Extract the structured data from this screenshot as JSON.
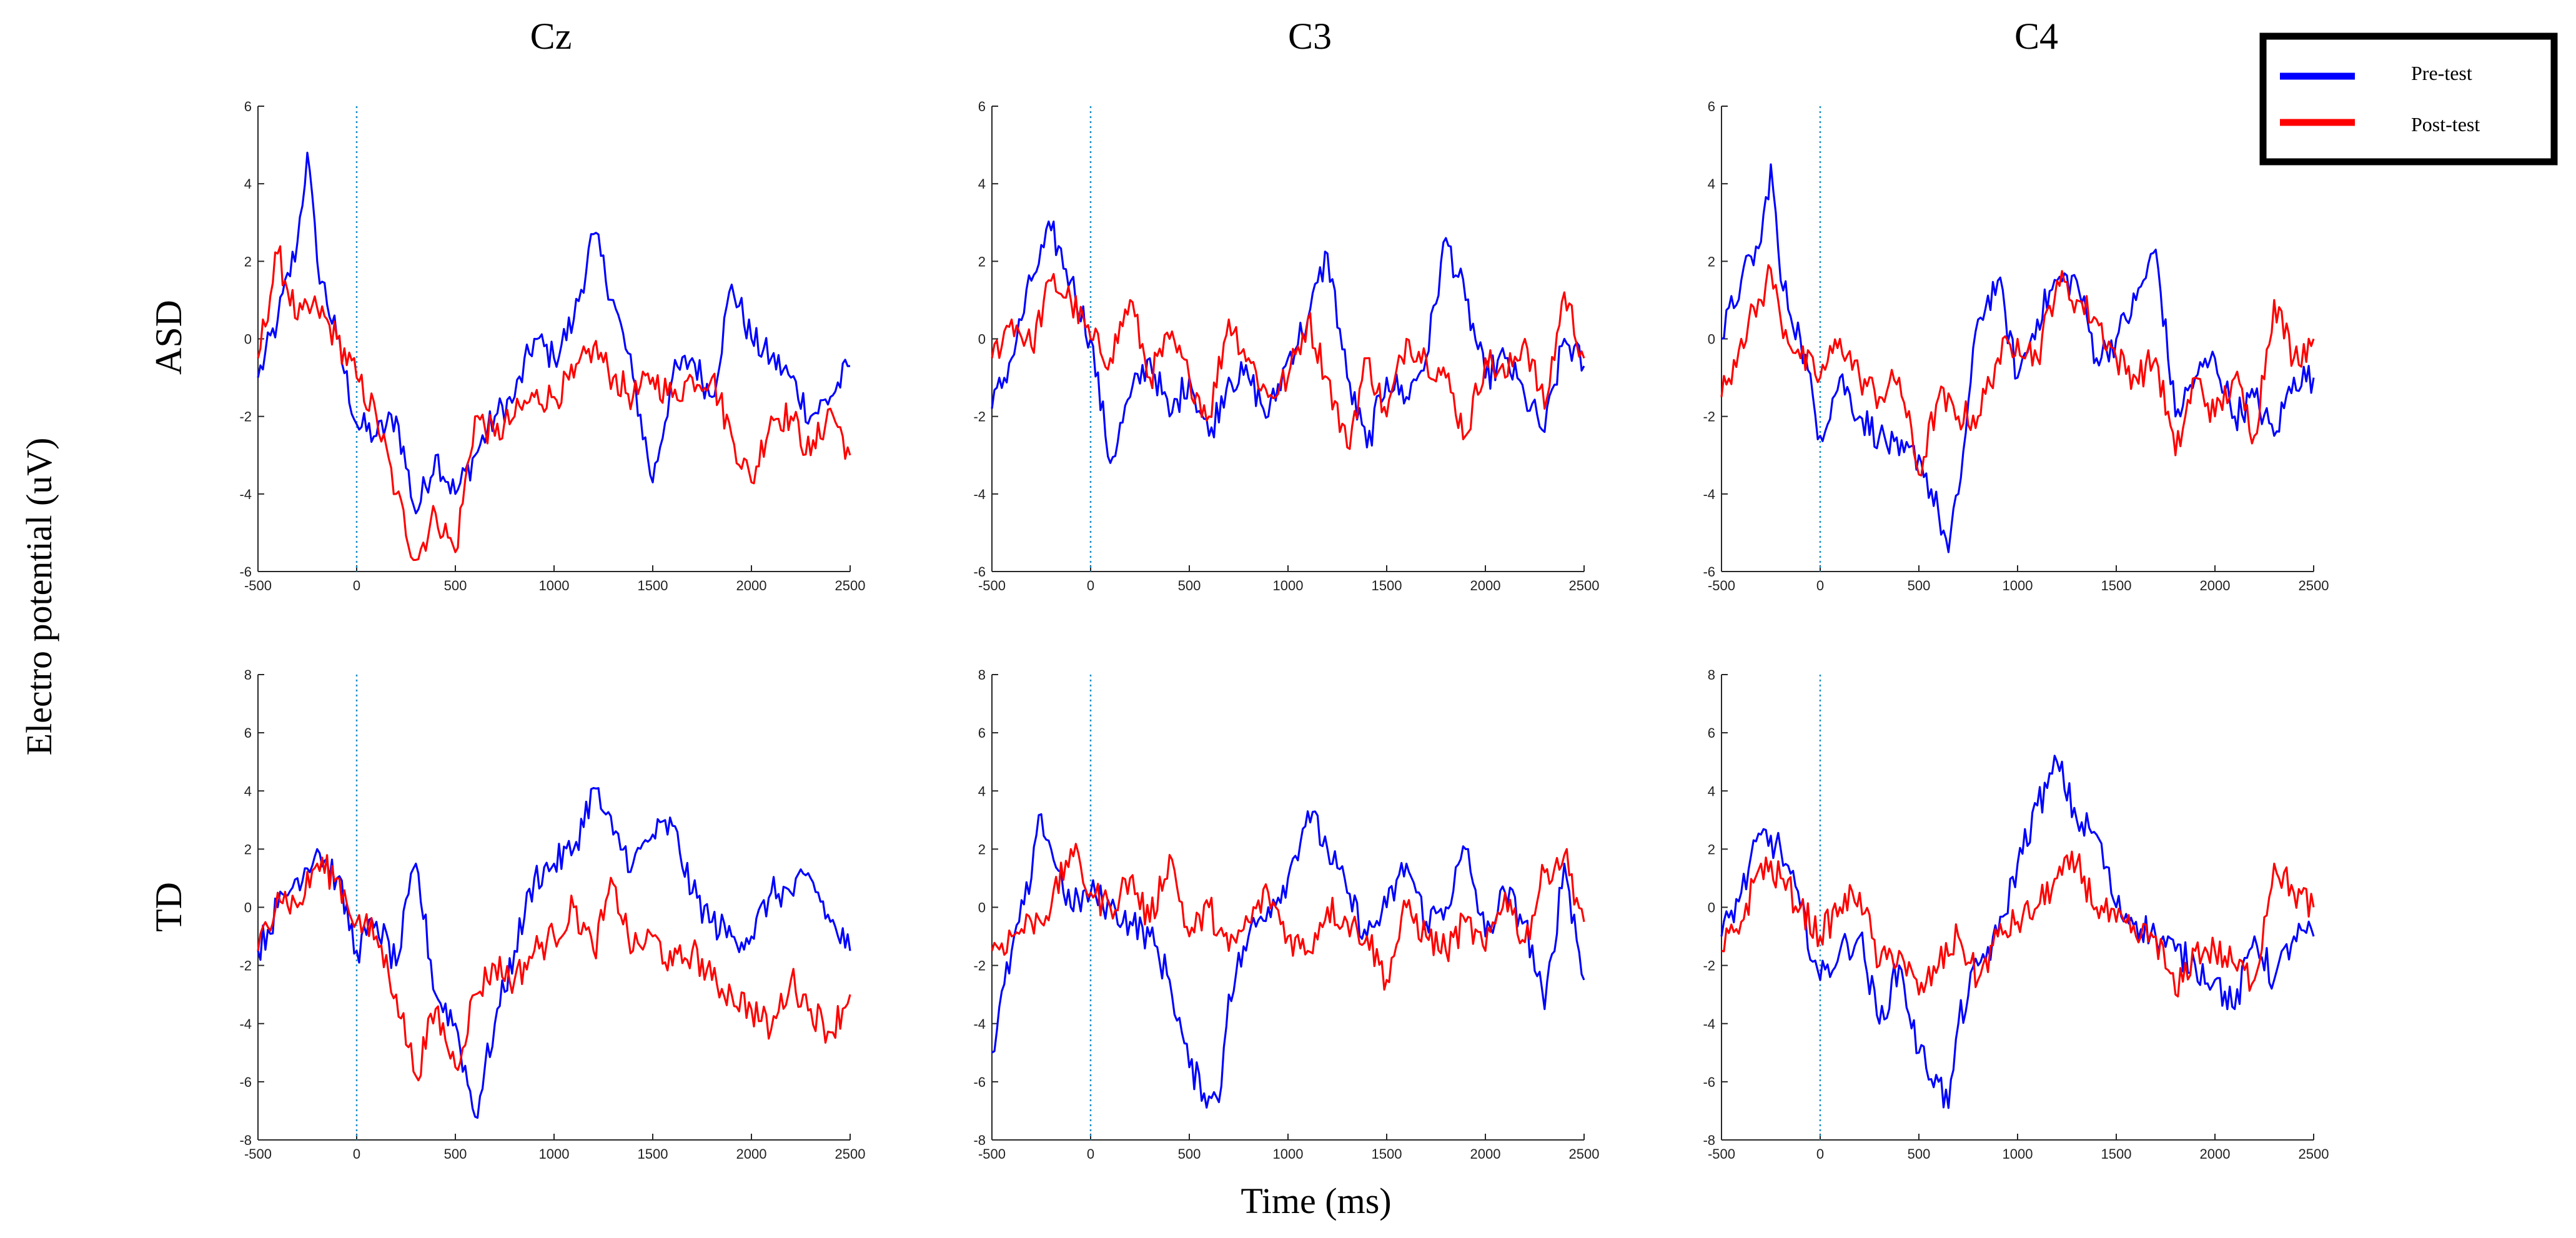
{
  "chart_data": {
    "type": "line",
    "ylabel": "Electro potential (uV)",
    "xlabel": "Time (ms)",
    "columns": [
      "Cz",
      "C3",
      "C4"
    ],
    "rows": [
      "ASD",
      "TD"
    ],
    "legend": {
      "position": "top-right",
      "entries": [
        {
          "name": "Pre-test",
          "color": "#0000ff"
        },
        {
          "name": "Post-test",
          "color": "#ff0000"
        }
      ]
    },
    "xlim": [
      -500,
      2500
    ],
    "xticks": [
      -500,
      0,
      500,
      1000,
      1500,
      2000,
      2500
    ],
    "stimulus_onset_ms": 0,
    "row_axes": [
      {
        "row": "ASD",
        "ylim": [
          -6,
          6
        ],
        "yticks": [
          -6,
          -4,
          -2,
          0,
          2,
          4,
          6
        ]
      },
      {
        "row": "TD",
        "ylim": [
          -8,
          8
        ],
        "yticks": [
          -8,
          -6,
          -4,
          -2,
          0,
          2,
          4,
          6,
          8
        ]
      }
    ],
    "panels": [
      {
        "row": "ASD",
        "column": "Cz",
        "series": [
          {
            "name": "Pre-test",
            "x": [
              -500,
              -400,
              -300,
              -250,
              -200,
              -100,
              0,
              100,
              200,
              300,
              400,
              500,
              600,
              700,
              800,
              900,
              1000,
              1100,
              1200,
              1300,
              1400,
              1500,
              1600,
              1700,
              1800,
              1900,
              2000,
              2100,
              2200,
              2300,
              2400,
              2500
            ],
            "y": [
              -1,
              0.5,
              2.5,
              4.8,
              2,
              0,
              -2.2,
              -2.5,
              -2,
              -4.5,
              -3,
              -4,
              -3,
              -2,
              -1.5,
              0,
              -0.5,
              0.5,
              2.7,
              1,
              -1,
              -3.7,
              -1,
              -0.5,
              -1.5,
              1.4,
              0,
              -0.5,
              -1,
              -2,
              -1.5,
              -0.7
            ]
          },
          {
            "name": "Post-test",
            "x": [
              -500,
              -400,
              -300,
              -200,
              -100,
              0,
              100,
              200,
              300,
              400,
              500,
              600,
              700,
              800,
              900,
              1000,
              1100,
              1200,
              1300,
              1400,
              1500,
              1600,
              1700,
              1800,
              1900,
              2000,
              2100,
              2200,
              2300,
              2400,
              2500
            ],
            "y": [
              -0.5,
              2.2,
              0.5,
              0.8,
              0,
              -1,
              -2,
              -4,
              -5.7,
              -4.5,
              -5.5,
              -2,
              -2.5,
              -2,
              -1.5,
              -1.5,
              -1,
              -0.2,
              -1,
              -1.5,
              -1,
              -1.5,
              -1,
              -1,
              -2.5,
              -3.7,
              -2,
              -2,
              -3,
              -1.8,
              -3
            ]
          }
        ]
      },
      {
        "row": "ASD",
        "column": "C3",
        "series": [
          {
            "name": "Pre-test",
            "x": [
              -500,
              -400,
              -300,
              -200,
              -100,
              0,
              100,
              200,
              300,
              400,
              500,
              600,
              700,
              800,
              900,
              1000,
              1100,
              1200,
              1300,
              1400,
              1500,
              1600,
              1700,
              1800,
              1900,
              2000,
              2100,
              2200,
              2300,
              2400,
              2500
            ],
            "y": [
              -1.8,
              -0.5,
              1.5,
              2.8,
              1.5,
              0,
              -3.2,
              -1.5,
              -0.5,
              -2,
              -1,
              -2.5,
              -1,
              -1,
              -2,
              -0.5,
              0.5,
              2.2,
              -1,
              -2.8,
              -1,
              -1.5,
              -0.5,
              2.6,
              1,
              -1,
              -0.5,
              -1.5,
              -2.4,
              0,
              -0.7
            ]
          },
          {
            "name": "Post-test",
            "x": [
              -500,
              -400,
              -300,
              -200,
              -100,
              0,
              100,
              200,
              300,
              400,
              500,
              600,
              700,
              800,
              900,
              1000,
              1100,
              1200,
              1300,
              1400,
              1500,
              1600,
              1700,
              1800,
              1900,
              2000,
              2100,
              2200,
              2300,
              2400,
              2500
            ],
            "y": [
              -0.5,
              0.5,
              -0.2,
              1.5,
              1,
              0,
              -0.5,
              1,
              -1,
              0,
              -1,
              -2,
              0.5,
              -0.5,
              -1.5,
              -1,
              0.5,
              -1,
              -2.8,
              -0.5,
              -2,
              0,
              -0.5,
              -1,
              -2.5,
              -0.5,
              -1,
              0,
              -1.8,
              1.2,
              -0.5
            ]
          }
        ]
      },
      {
        "row": "ASD",
        "column": "C4",
        "series": [
          {
            "name": "Pre-test",
            "x": [
              -500,
              -400,
              -300,
              -250,
              -200,
              -100,
              0,
              100,
              200,
              300,
              400,
              500,
              600,
              650,
              700,
              800,
              900,
              1000,
              1100,
              1200,
              1300,
              1400,
              1500,
              1600,
              1700,
              1800,
              1900,
              2000,
              2100,
              2200,
              2300,
              2400,
              2500
            ],
            "y": [
              0,
              1.5,
              2.5,
              4.5,
              1.5,
              0,
              -2.5,
              -1,
              -2,
              -2.5,
              -3,
              -3,
              -4.5,
              -5.5,
              -4,
              0.5,
              1.5,
              -1,
              0.5,
              1.5,
              1.5,
              -0.5,
              0,
              1,
              2.3,
              -2,
              -1,
              -0.5,
              -2,
              -1.5,
              -2.5,
              -1,
              -1
            ]
          },
          {
            "name": "Post-test",
            "x": [
              -500,
              -400,
              -300,
              -250,
              -200,
              -100,
              0,
              100,
              200,
              300,
              400,
              500,
              600,
              700,
              800,
              900,
              1000,
              1100,
              1200,
              1300,
              1400,
              1500,
              1600,
              1700,
              1800,
              1900,
              2000,
              2100,
              2200,
              2300,
              2400,
              2500
            ],
            "y": [
              -1.5,
              0,
              1,
              1.8,
              0.5,
              -0.5,
              -1,
              0,
              -1,
              -1.5,
              -1,
              -3.5,
              -1.5,
              -2,
              -2,
              -0.5,
              0,
              -0.5,
              1.5,
              1,
              0.5,
              -0.5,
              -1,
              -0.5,
              -3,
              -1,
              -2,
              -1,
              -2.5,
              1,
              -0.5,
              0
            ]
          }
        ]
      },
      {
        "row": "TD",
        "column": "Cz",
        "series": [
          {
            "name": "Pre-test",
            "x": [
              -500,
              -400,
              -300,
              -200,
              -100,
              0,
              100,
              200,
              300,
              400,
              500,
              600,
              700,
              800,
              900,
              1000,
              1100,
              1200,
              1300,
              1400,
              1500,
              1600,
              1700,
              1800,
              1900,
              2000,
              2100,
              2200,
              2300,
              2400,
              2500
            ],
            "y": [
              -1.5,
              0,
              1,
              2,
              1,
              -1.5,
              -0.5,
              -2,
              1.5,
              -3,
              -4,
              -7.2,
              -4,
              -1.5,
              1,
              1.5,
              2,
              4.1,
              2.5,
              1.5,
              2.5,
              2.8,
              0.5,
              -0.5,
              -1,
              -1,
              0.5,
              0.5,
              1,
              -0.5,
              -1.5
            ]
          },
          {
            "name": "Post-test",
            "x": [
              -500,
              -400,
              -300,
              -200,
              -100,
              0,
              100,
              200,
              300,
              400,
              500,
              600,
              700,
              800,
              900,
              1000,
              1100,
              1200,
              1300,
              1400,
              1500,
              1600,
              1700,
              1800,
              1900,
              2000,
              2100,
              2200,
              2300,
              2400,
              2500
            ],
            "y": [
              -1.5,
              0.5,
              0,
              1.5,
              1,
              -0.5,
              -1,
              -3,
              -5.8,
              -3.5,
              -5.5,
              -3,
              -2,
              -2.5,
              -1.5,
              -1,
              0,
              -1.5,
              0.8,
              -1.5,
              -1,
              -2,
              -1.5,
              -2.5,
              -3,
              -3.5,
              -4.2,
              -2.5,
              -3.5,
              -4.3,
              -3
            ]
          }
        ]
      },
      {
        "row": "TD",
        "column": "C3",
        "series": [
          {
            "name": "Pre-test",
            "x": [
              -500,
              -400,
              -300,
              -250,
              -200,
              -100,
              0,
              100,
              200,
              300,
              400,
              500,
              600,
              650,
              700,
              800,
              900,
              1000,
              1100,
              1200,
              1300,
              1400,
              1500,
              1600,
              1700,
              1800,
              1900,
              2000,
              2100,
              2200,
              2300,
              2400,
              2500
            ],
            "y": [
              -5,
              -1.5,
              1,
              3.2,
              2,
              0,
              0.5,
              0,
              -0.5,
              -1,
              -2.5,
              -5.5,
              -6.5,
              -6.7,
              -3,
              -1,
              0,
              1,
              3.3,
              2,
              0.5,
              -1,
              0,
              1.5,
              -0.5,
              0,
              2,
              -1,
              0.5,
              -0.5,
              -3.5,
              1.5,
              -2.5
            ]
          },
          {
            "name": "Post-test",
            "x": [
              -500,
              -400,
              -300,
              -200,
              -100,
              0,
              100,
              200,
              300,
              400,
              500,
              600,
              700,
              800,
              900,
              1000,
              1100,
              1200,
              1300,
              1400,
              1500,
              1600,
              1700,
              1800,
              1900,
              2000,
              2100,
              2200,
              2300,
              2400,
              2500
            ],
            "y": [
              -1.5,
              -1,
              -0.5,
              0,
              2,
              0.5,
              0,
              1,
              -0.5,
              1.8,
              -1,
              0,
              -1.5,
              -0.5,
              0.5,
              -1,
              -1.5,
              0,
              -0.5,
              -1,
              -2.5,
              0,
              -1,
              -1.5,
              -0.5,
              -1.5,
              0.5,
              -1.2,
              1.2,
              1.8,
              -0.5
            ]
          }
        ]
      },
      {
        "row": "TD",
        "column": "C4",
        "series": [
          {
            "name": "Pre-test",
            "x": [
              -500,
              -400,
              -300,
              -200,
              -100,
              0,
              100,
              200,
              300,
              400,
              500,
              600,
              650,
              700,
              800,
              900,
              1000,
              1100,
              1150,
              1200,
              1300,
              1400,
              1500,
              1600,
              1700,
              1800,
              1900,
              2000,
              2100,
              2200,
              2300,
              2400,
              2500
            ],
            "y": [
              -1,
              0.5,
              2.5,
              2,
              0,
              -2.5,
              -1.5,
              -1,
              -4,
              -2,
              -5,
              -6,
              -6.9,
              -4,
              -2,
              -1,
              1.5,
              3.5,
              4.1,
              5,
              3,
              2.5,
              0,
              -0.5,
              -1,
              -1.5,
              -2,
              -2.5,
              -3.5,
              -1,
              -2.5,
              -1,
              -1
            ]
          },
          {
            "name": "Post-test",
            "x": [
              -500,
              -400,
              -300,
              -200,
              -100,
              0,
              100,
              200,
              300,
              400,
              500,
              600,
              700,
              800,
              900,
              1000,
              1100,
              1200,
              1300,
              1400,
              1500,
              1600,
              1700,
              1800,
              1900,
              2000,
              2100,
              2200,
              2300,
              2400,
              2500
            ],
            "y": [
              -1.5,
              -0.5,
              1.5,
              1,
              0,
              -1,
              0,
              0.5,
              -2,
              -1.5,
              -3,
              -2,
              -1,
              -2.5,
              -1,
              -0.5,
              0,
              1,
              1.5,
              0,
              -0.5,
              -1,
              -1,
              -3,
              -1.5,
              -1.5,
              -2,
              -2.5,
              1.5,
              0.5,
              0
            ]
          }
        ]
      }
    ]
  }
}
